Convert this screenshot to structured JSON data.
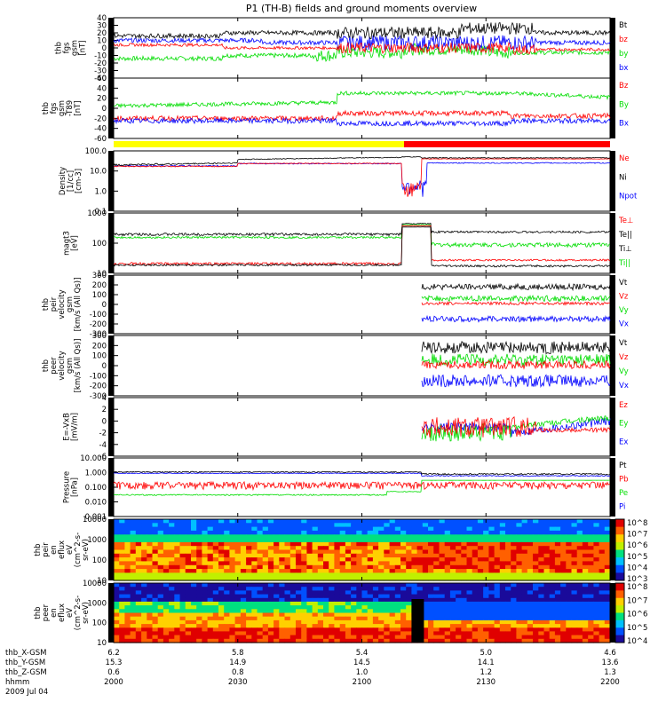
{
  "title": "P1 (TH-B) fields and ground moments overview",
  "colors": {
    "black": "#000000",
    "red": "#ff0000",
    "green": "#00dd00",
    "blue": "#0000ff",
    "yellow": "#ffff00"
  },
  "time_axis": {
    "start": "2000",
    "end": "2200",
    "labels": [
      "2000",
      "2030",
      "2100",
      "2130",
      "2200"
    ],
    "date": "2009 Jul 04"
  },
  "ephemeris": {
    "rows": [
      {
        "label": "thb_X-GSM",
        "values": [
          "6.2",
          "5.8",
          "5.4",
          "5.0",
          "4.6"
        ]
      },
      {
        "label": "thb_Y-GSM",
        "values": [
          "15.3",
          "14.9",
          "14.5",
          "14.1",
          "13.6"
        ]
      },
      {
        "label": "thb_Z-GSM",
        "values": [
          "0.6",
          "0.8",
          "1.0",
          "1.2",
          "1.3"
        ]
      },
      {
        "label": "hhmm",
        "values": [
          "2000",
          "2030",
          "2100",
          "2130",
          "2200"
        ]
      }
    ],
    "date": "2009 Jul 04"
  },
  "chart_data": {
    "type": "line",
    "title": "P1 (TH-B) fields and ground moments overview",
    "x_range": [
      "20:00",
      "22:00"
    ],
    "bar_status": {
      "colors": [
        "yellow",
        "red"
      ],
      "transition": "21:12"
    },
    "panels": [
      {
        "id": "fgs",
        "ylabel": [
          "thb",
          "fgs",
          "gsm",
          "[nT]"
        ],
        "ylim": [
          -40,
          40
        ],
        "ticks": [
          "40",
          "30",
          "20",
          "10",
          "0",
          "-10",
          "-20",
          "-30",
          "-40"
        ],
        "series": [
          {
            "name": "Bt",
            "color": "black"
          },
          {
            "name": "bz",
            "color": "red"
          },
          {
            "name": "by",
            "color": "green"
          },
          {
            "name": "bx",
            "color": "blue"
          }
        ],
        "levels": {
          "Bt": [
            15,
            20
          ],
          "bz": [
            3,
            0
          ],
          "by": [
            -10,
            -8
          ],
          "bx": [
            8,
            10
          ]
        }
      },
      {
        "id": "fgs_minus",
        "ylabel": [
          "thb",
          "fgs",
          "gsm",
          "-T89",
          "[nT]"
        ],
        "ylim": [
          -60,
          60
        ],
        "ticks": [
          "60",
          "40",
          "20",
          "0",
          "-20",
          "-40",
          "-60"
        ],
        "series": [
          {
            "name": "Bz",
            "color": "red"
          },
          {
            "name": "By",
            "color": "green"
          },
          {
            "name": "Bx",
            "color": "blue"
          }
        ]
      },
      {
        "id": "density",
        "ylabel": [
          "Density",
          "[1/cc]",
          "[cm-3]"
        ],
        "ylim": [
          0.1,
          100
        ],
        "log": true,
        "ticks": [
          "100.0",
          "10.0",
          "1.0",
          "0.1"
        ],
        "series": [
          {
            "name": "Ne",
            "color": "red"
          },
          {
            "name": "Ni",
            "color": "black"
          },
          {
            "name": "Npot",
            "color": "blue"
          }
        ]
      },
      {
        "id": "temp",
        "ylabel": [
          "magt3",
          "[eV]"
        ],
        "ylim": [
          10,
          3000
        ],
        "log": true,
        "ticks": [
          "1000",
          "100",
          "10"
        ],
        "series": [
          {
            "name": "Te⊥",
            "color": "red"
          },
          {
            "name": "Te||",
            "color": "black"
          },
          {
            "name": "Ti⊥",
            "color": "black"
          },
          {
            "name": "Ti||",
            "color": "green"
          }
        ]
      },
      {
        "id": "peir_vel",
        "ylabel": [
          "thb",
          "peir",
          "velocity",
          "gsm",
          "[km/s (All Qs)]"
        ],
        "ylim": [
          -300,
          300
        ],
        "ticks": [
          "300",
          "200",
          "100",
          "0",
          "-100",
          "-200",
          "-300"
        ],
        "series": [
          {
            "name": "Vt",
            "color": "black"
          },
          {
            "name": "Vz",
            "color": "red"
          },
          {
            "name": "Vy",
            "color": "green"
          },
          {
            "name": "Vx",
            "color": "blue"
          }
        ]
      },
      {
        "id": "peer_vel",
        "ylabel": [
          "thb",
          "peer",
          "velocity",
          "gsm",
          "[km/s (All Qs)]"
        ],
        "ylim": [
          -300,
          300
        ],
        "ticks": [
          "300",
          "200",
          "100",
          "0",
          "-100",
          "-200",
          "-300"
        ],
        "series": [
          {
            "name": "Vt",
            "color": "black"
          },
          {
            "name": "Vz",
            "color": "red"
          },
          {
            "name": "Vy",
            "color": "green"
          },
          {
            "name": "Vx",
            "color": "blue"
          }
        ]
      },
      {
        "id": "efield",
        "ylabel": [
          "E=-VxB",
          "[mV/m]"
        ],
        "ylim": [
          -6,
          4
        ],
        "ticks": [
          "4",
          "2",
          "0",
          "-2",
          "-4",
          "-6"
        ],
        "series": [
          {
            "name": "Ez",
            "color": "red"
          },
          {
            "name": "Ey",
            "color": "green"
          },
          {
            "name": "Ex",
            "color": "blue"
          }
        ]
      },
      {
        "id": "pressure",
        "ylabel": [
          "Pressure",
          "[nPa]"
        ],
        "ylim": [
          0.001,
          10
        ],
        "log": true,
        "ticks": [
          "10.000",
          "1.000",
          "0.100",
          "0.010",
          "0.001"
        ],
        "series": [
          {
            "name": "Pt",
            "color": "black"
          },
          {
            "name": "Pb",
            "color": "red"
          },
          {
            "name": "Pe",
            "color": "green"
          },
          {
            "name": "Pi",
            "color": "blue"
          }
        ]
      },
      {
        "id": "peir_spec",
        "type": "heatmap",
        "ylabel": [
          "thb",
          "peir",
          "en",
          "eflux",
          "eV",
          "(cm^2-s-",
          "sr-eV)"
        ],
        "ylim": [
          10,
          10000
        ],
        "log": true,
        "ticks": [
          "10000",
          "1000",
          "100",
          "10"
        ],
        "colorbar": [
          "10^8",
          "10^7",
          "10^6",
          "10^5",
          "10^4",
          "10^3"
        ]
      },
      {
        "id": "peer_spec",
        "type": "heatmap",
        "ylabel": [
          "thb",
          "peer",
          "en",
          "eflux",
          "eV",
          "(cm^2-s-",
          "sr-eV)"
        ],
        "ylim": [
          10,
          10000
        ],
        "log": true,
        "ticks": [
          "10000",
          "1000",
          "100",
          "10"
        ],
        "colorbar": [
          "10^8",
          "10^7",
          "10^6",
          "10^5",
          "10^4"
        ]
      }
    ]
  }
}
